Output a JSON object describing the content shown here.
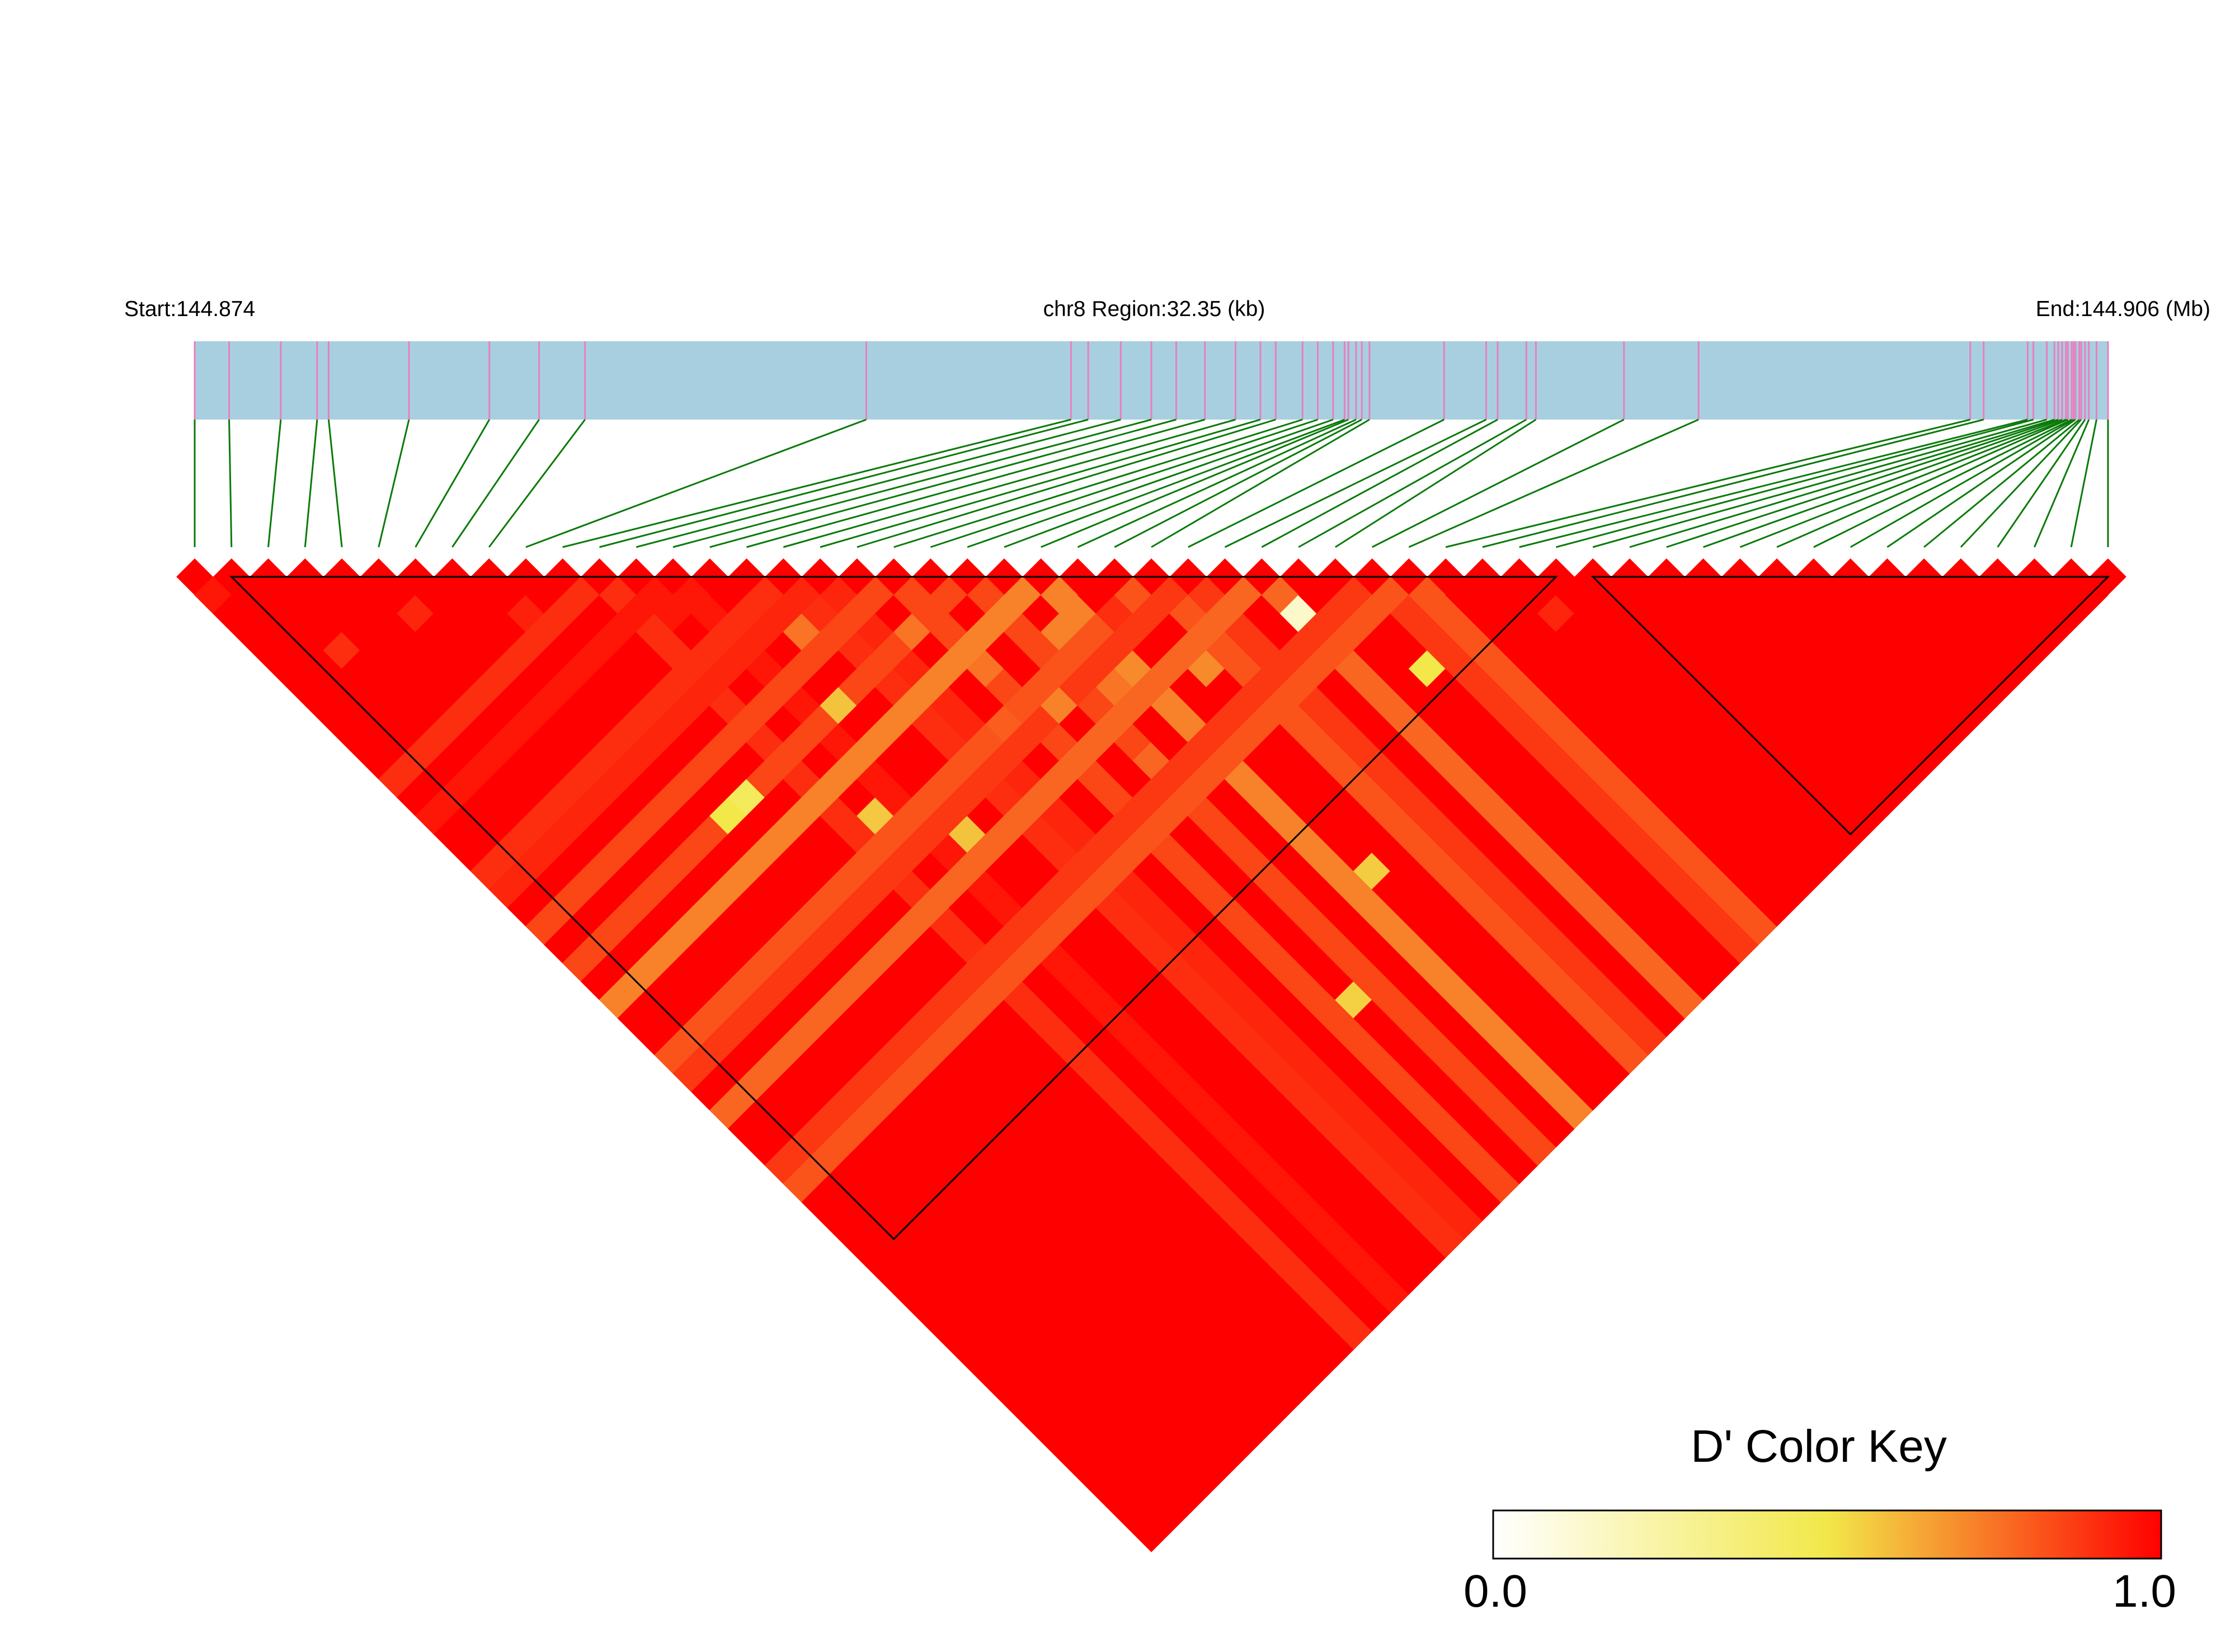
{
  "chart_data": {
    "type": "heatmap",
    "title": "",
    "header": {
      "start_label": "Start:144.874",
      "region_label": "chr8 Region:32.35 (kb)",
      "end_label": "End:144.906 (Mb)"
    },
    "chromosome": "chr8",
    "region_start_mb": 144.874,
    "region_end_mb": 144.906,
    "region_length_kb": 32.35,
    "n_snps": 53,
    "snp_positions_fraction": [
      0,
      0.018,
      0.045,
      0.064,
      0.07,
      0.112,
      0.154,
      0.18,
      0.204,
      0.351,
      0.458,
      0.467,
      0.484,
      0.5,
      0.513,
      0.528,
      0.544,
      0.557,
      0.565,
      0.579,
      0.587,
      0.595,
      0.601,
      0.603,
      0.607,
      0.61,
      0.614,
      0.653,
      0.675,
      0.681,
      0.696,
      0.701,
      0.747,
      0.786,
      0.928,
      0.935,
      0.958,
      0.961,
      0.968,
      0.972,
      0.974,
      0.976,
      0.978,
      0.979,
      0.981,
      0.982,
      0.983,
      0.985,
      0.986,
      0.988,
      0.99,
      0.994,
      1.0
    ],
    "ld_metric": "D'",
    "default_d_prime": 1.0,
    "d_prime_exceptions": [
      {
        "i": 0,
        "j": 1,
        "d": 0.95
      },
      {
        "i": 5,
        "j": 7,
        "d": 0.92
      },
      {
        "i": 8,
        "j": 10,
        "d": 0.93
      },
      {
        "i": 2,
        "j": 6,
        "d": 0.9
      },
      {
        "i": 12,
        "j": 14,
        "d": 0.95
      },
      {
        "i": 24,
        "j": 26,
        "d": 0.9
      },
      {
        "i": 36,
        "j": 38,
        "d": 0.92
      },
      {
        "i": 14,
        "j": 21,
        "d": 0.58
      },
      {
        "i": 12,
        "j": 25,
        "d": 0.57
      },
      {
        "i": 14,
        "j": 28,
        "d": 0.58
      },
      {
        "i": 29,
        "j": 31,
        "d": 0.15
      },
      {
        "i": 31,
        "j": 36,
        "d": 0.5
      },
      {
        "i": 8,
        "j": 21,
        "d": 0.5
      },
      {
        "i": 9,
        "j": 21,
        "d": 0.45
      },
      {
        "i": 24,
        "j": 40,
        "d": 0.56
      },
      {
        "i": 20,
        "j": 43,
        "d": 0.55
      },
      {
        "i": 15,
        "j": 18,
        "d": 0.75
      },
      {
        "i": 18,
        "j": 21,
        "d": 0.75
      },
      {
        "i": 19,
        "j": 24,
        "d": 0.75
      },
      {
        "i": 22,
        "j": 25,
        "d": 0.72
      },
      {
        "i": 22,
        "j": 28,
        "d": 0.75
      },
      {
        "i": 25,
        "j": 30,
        "d": 0.7
      },
      {
        "i": 21,
        "j": 31,
        "d": 0.78
      },
      {
        "i": 23,
        "j": 28,
        "d": 0.7
      },
      {
        "i": 20,
        "j": 27,
        "d": 0.72
      },
      {
        "i": 18,
        "j": 26,
        "d": 0.8
      }
    ],
    "bands": [
      {
        "index": 11,
        "d": 0.9
      },
      {
        "index": 13,
        "d": 0.95
      },
      {
        "index": 16,
        "d": 0.9
      },
      {
        "index": 17,
        "d": 0.92
      },
      {
        "index": 19,
        "d": 0.85
      },
      {
        "index": 21,
        "d": 0.85
      },
      {
        "index": 23,
        "d": 0.72
      },
      {
        "index": 26,
        "d": 0.82
      },
      {
        "index": 27,
        "d": 0.88
      },
      {
        "index": 29,
        "d": 0.78
      },
      {
        "index": 32,
        "d": 0.88
      },
      {
        "index": 33,
        "d": 0.82
      }
    ],
    "blocks": [
      {
        "first": 1,
        "last": 37
      },
      {
        "first": 38,
        "last": 52
      }
    ],
    "color_key": {
      "title": "D' Color Key",
      "min_label": "0.0",
      "max_label": "1.0",
      "min": 0.0,
      "max": 1.0,
      "stops": [
        "#ffffff",
        "#f2e84a",
        "#ff0000"
      ]
    },
    "colors": {
      "track": "#a8cfe0",
      "snp_tick": "#e87fbf",
      "connector": "#0a7a0a",
      "ld_high": "#ff0000",
      "block_outline": "#000000"
    }
  }
}
